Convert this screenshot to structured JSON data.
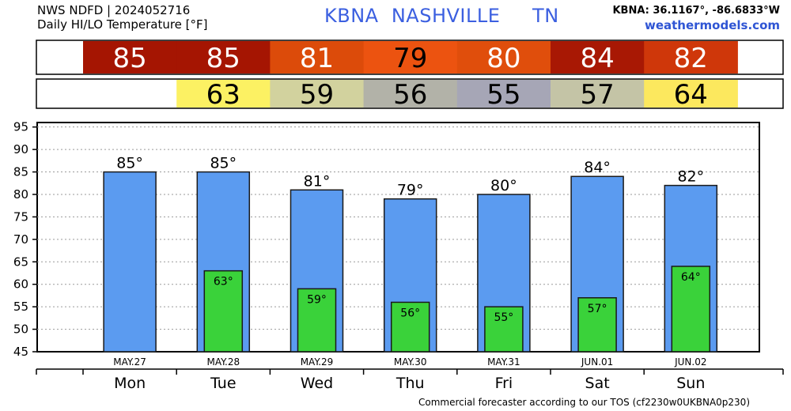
{
  "header": {
    "model_line": "NWS NDFD | 2024052716",
    "product_line": "Daily HI/LO Temperature [°F]",
    "station_line": "KBNA  NASHVILLE     TN",
    "coords": "KBNA: 36.1167°, -86.6833°W",
    "site": "weathermodels.com"
  },
  "footer": "Commercial forecaster according to our TOS (cf2230w0UKBNA0p230)",
  "chart_data": {
    "type": "bar",
    "categories": [
      "Mon",
      "Tue",
      "Wed",
      "Thu",
      "Fri",
      "Sat",
      "Sun"
    ],
    "dates": [
      "MAY.27",
      "MAY.28",
      "MAY.29",
      "MAY.30",
      "MAY.31",
      "JUN.01",
      "JUN.02"
    ],
    "series": [
      {
        "name": "HI",
        "values": [
          85,
          85,
          81,
          79,
          80,
          84,
          82
        ],
        "labels": [
          "85°",
          "85°",
          "81°",
          "79°",
          "80°",
          "84°",
          "82°"
        ]
      },
      {
        "name": "LO",
        "values": [
          null,
          63,
          59,
          56,
          55,
          57,
          64
        ],
        "labels": [
          "",
          "63°",
          "59°",
          "56°",
          "55°",
          "57°",
          "64°"
        ]
      }
    ],
    "band_hi": {
      "labels": [
        "85",
        "85",
        "81",
        "79",
        "80",
        "84",
        "82"
      ],
      "colors": [
        "#a51502",
        "#a51502",
        "#dc4b0a",
        "#ec5310",
        "#e04e0c",
        "#a81804",
        "#cf370a"
      ]
    },
    "band_lo": {
      "labels": [
        "",
        "63",
        "59",
        "56",
        "55",
        "57",
        "64"
      ],
      "colors": [
        "#ffffff",
        "#fcf163",
        "#d2d29e",
        "#b2b2a8",
        "#a6a6b6",
        "#c4c4a6",
        "#fce85e"
      ]
    },
    "yticks": [
      "45",
      "50",
      "55",
      "60",
      "65",
      "70",
      "75",
      "80",
      "85",
      "90",
      "95"
    ],
    "ylim": [
      45,
      96
    ],
    "grid": true,
    "colors": {
      "hi_bar": "#5b9bf0",
      "lo_bar": "#3ad23a"
    }
  }
}
